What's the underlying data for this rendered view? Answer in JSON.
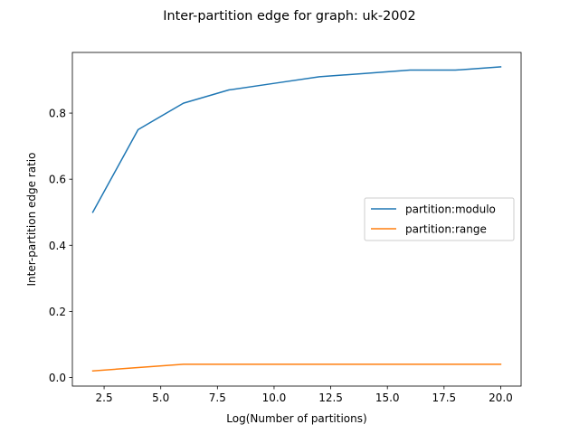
{
  "chart_data": {
    "type": "line",
    "title": "Inter-partition edge for graph: uk-2002",
    "xlabel": "Log(Number of partitions)",
    "ylabel": "Inter-partition edge ratio",
    "xlim": [
      1.1,
      20.9
    ],
    "ylim": [
      -0.026,
      0.9835
    ],
    "xticks": [
      2.5,
      5.0,
      7.5,
      10.0,
      12.5,
      15.0,
      17.5,
      20.0
    ],
    "xtick_labels": [
      "2.5",
      "5.0",
      "7.5",
      "10.0",
      "12.5",
      "15.0",
      "17.5",
      "20.0"
    ],
    "yticks": [
      0.0,
      0.2,
      0.4,
      0.6,
      0.8
    ],
    "ytick_labels": [
      "0.0",
      "0.2",
      "0.4",
      "0.6",
      "0.8"
    ],
    "grid": false,
    "legend_position": "center-right",
    "series": [
      {
        "name": "partition:modulo",
        "color": "#1f77b4",
        "x": [
          2,
          4,
          6,
          8,
          10,
          12,
          14,
          16,
          18,
          20
        ],
        "y": [
          0.5,
          0.75,
          0.83,
          0.87,
          0.89,
          0.91,
          0.92,
          0.93,
          0.93,
          0.94
        ]
      },
      {
        "name": "partition:range",
        "color": "#ff7f0e",
        "x": [
          2,
          4,
          6,
          8,
          10,
          12,
          14,
          16,
          18,
          20
        ],
        "y": [
          0.02,
          0.03,
          0.04,
          0.04,
          0.04,
          0.04,
          0.04,
          0.04,
          0.04,
          0.04
        ]
      }
    ]
  }
}
